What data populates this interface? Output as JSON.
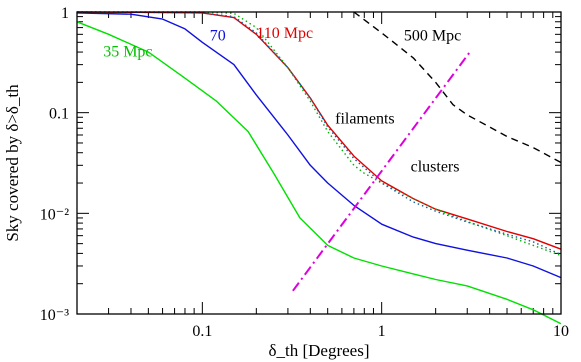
{
  "chart_data": {
    "type": "line",
    "title": "",
    "xlabel": "δ_th [Degrees]",
    "ylabel": "Sky covered by δ>δ_th",
    "x_scale": "log",
    "y_scale": "log",
    "xlim": [
      0.02,
      10
    ],
    "ylim": [
      0.001,
      1
    ],
    "x_ticks": [
      {
        "value": 0.1,
        "label": "0.1"
      },
      {
        "value": 1,
        "label": "1"
      },
      {
        "value": 10,
        "label": "10"
      }
    ],
    "y_ticks": [
      {
        "value": 1,
        "label": "1"
      },
      {
        "value": 0.1,
        "label": "0.1"
      },
      {
        "value": 0.01,
        "label": "10⁻²"
      },
      {
        "value": 0.001,
        "label": "10⁻³"
      }
    ],
    "grid": false,
    "series": [
      {
        "name": "35 Mpc",
        "color": "#00e000",
        "style": "solid",
        "x": [
          0.02,
          0.03,
          0.05,
          0.08,
          0.12,
          0.18,
          0.25,
          0.35,
          0.5,
          0.7,
          1.0,
          1.5,
          2.0,
          3.0,
          5.0,
          7.0,
          10.0
        ],
        "y": [
          0.8,
          0.6,
          0.4,
          0.22,
          0.13,
          0.065,
          0.025,
          0.009,
          0.0048,
          0.0036,
          0.003,
          0.0025,
          0.0022,
          0.0019,
          0.0014,
          0.0011,
          0.0008
        ]
      },
      {
        "name": "70",
        "color": "#1010e0",
        "style": "solid",
        "x": [
          0.02,
          0.04,
          0.06,
          0.08,
          0.1,
          0.15,
          0.2,
          0.3,
          0.4,
          0.5,
          0.7,
          1.0,
          1.5,
          2.0,
          3.0,
          5.0,
          7.0,
          10.0
        ],
        "y": [
          0.98,
          0.95,
          0.85,
          0.68,
          0.5,
          0.3,
          0.15,
          0.06,
          0.03,
          0.02,
          0.012,
          0.0078,
          0.0058,
          0.005,
          0.0043,
          0.0036,
          0.003,
          0.0023
        ]
      },
      {
        "name": "110 Mpc",
        "color": "#e00000",
        "style": "solid",
        "x": [
          0.02,
          0.05,
          0.1,
          0.15,
          0.2,
          0.3,
          0.4,
          0.5,
          0.7,
          1.0,
          1.5,
          2.0,
          3.0,
          5.0,
          7.0,
          10.0
        ],
        "y": [
          1.0,
          0.99,
          0.98,
          0.88,
          0.6,
          0.28,
          0.14,
          0.075,
          0.037,
          0.021,
          0.014,
          0.011,
          0.0088,
          0.0066,
          0.0056,
          0.0044
        ]
      },
      {
        "name": "",
        "color": "#00b000",
        "style": "dotted",
        "x": [
          0.02,
          0.05,
          0.1,
          0.15,
          0.2,
          0.3,
          0.4,
          0.5,
          0.7,
          0.8,
          1.0,
          1.5,
          2.0,
          3.0,
          5.0,
          10.0
        ],
        "y": [
          1.0,
          1.0,
          1.0,
          0.97,
          0.7,
          0.28,
          0.13,
          0.065,
          0.03,
          0.025,
          0.02,
          0.014,
          0.011,
          0.0083,
          0.006,
          0.0038
        ]
      },
      {
        "name": "",
        "color": "#1060a0",
        "style": "dotted",
        "x": [
          0.02,
          0.05,
          0.1,
          0.15,
          0.2,
          0.3,
          0.4,
          0.5,
          0.7,
          1.0,
          1.5,
          2.0,
          3.0,
          5.0,
          7.0,
          10.0
        ],
        "y": [
          1.0,
          0.99,
          0.98,
          0.9,
          0.62,
          0.28,
          0.14,
          0.072,
          0.035,
          0.02,
          0.013,
          0.0105,
          0.0082,
          0.0062,
          0.0052,
          0.0039
        ]
      },
      {
        "name": "500 Mpc",
        "color": "#000000",
        "style": "dashed",
        "x": [
          0.7,
          1.0,
          1.5,
          2.0,
          2.5,
          3.0,
          4.0,
          5.0,
          7.0,
          10.0
        ],
        "y": [
          1.0,
          0.62,
          0.35,
          0.2,
          0.12,
          0.095,
          0.072,
          0.058,
          0.045,
          0.032
        ]
      },
      {
        "name": "",
        "color": "#dd00dd",
        "style": "dashdot",
        "x": [
          0.32,
          3.1
        ],
        "y": [
          0.0017,
          0.4
        ]
      }
    ],
    "annotations": [
      {
        "text": "35 Mpc",
        "x": 0.028,
        "y": 0.36,
        "color": "#00c000"
      },
      {
        "text": "70",
        "x": 0.11,
        "y": 0.52,
        "color": "#1010e0"
      },
      {
        "text": "110 Mpc",
        "x": 0.2,
        "y": 0.55,
        "color": "#e00000"
      },
      {
        "text": "500 Mpc",
        "x": 1.33,
        "y": 0.52,
        "color": "#000000"
      },
      {
        "text": "filaments",
        "x": 0.55,
        "y": 0.078,
        "color": "#000000"
      },
      {
        "text": "clusters",
        "x": 1.45,
        "y": 0.026,
        "color": "#000000"
      }
    ]
  }
}
